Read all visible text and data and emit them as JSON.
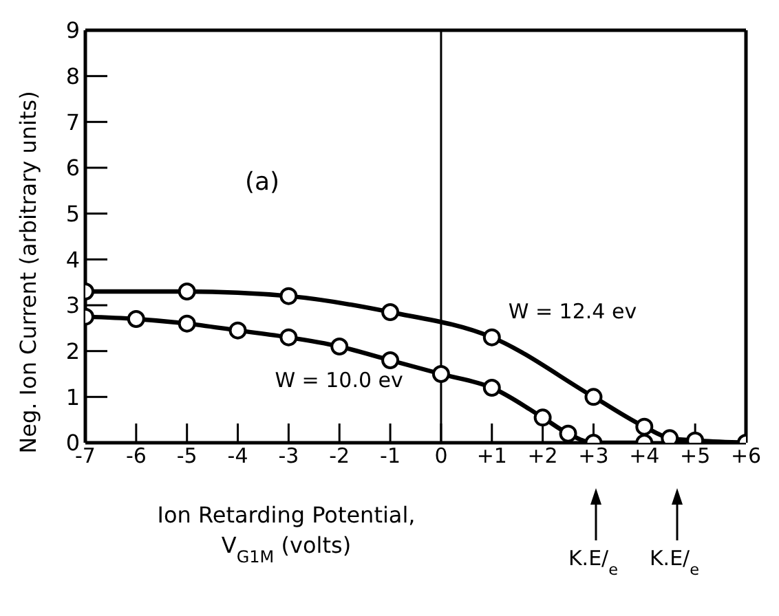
{
  "chart_data": {
    "type": "line",
    "xlabel": "Ion Retarding Potential,\nV$_{G1M}$ (volts)",
    "ylabel": "Neg. Ion Current  (arbitrary units)",
    "series": [
      {
        "name": "W = 12.4 ev",
        "color": "#000000",
        "x": [
          -7,
          -5,
          -3,
          -1,
          1,
          3,
          4,
          4.5,
          5,
          6
        ],
        "values": [
          3.3,
          3.3,
          3.2,
          2.85,
          2.3,
          1.0,
          0.35,
          0.1,
          0.05,
          0
        ]
      },
      {
        "name": "W = 10.0 ev",
        "color": "#000000",
        "x": [
          -7,
          -6,
          -5,
          -4,
          -3,
          -2,
          -1,
          0,
          1,
          2,
          2.5,
          3,
          4
        ],
        "values": [
          2.75,
          2.7,
          2.6,
          2.45,
          2.3,
          2.1,
          1.8,
          1.5,
          1.2,
          0.55,
          0.2,
          0,
          0
        ]
      }
    ],
    "xlim": [
      -7,
      6
    ],
    "xticks": [
      -7,
      -6,
      -5,
      -4,
      -3,
      -2,
      -1,
      0,
      {
        "value": 1,
        "label": "+1"
      },
      {
        "value": 2,
        "label": "+2"
      },
      {
        "value": 3,
        "label": "+3"
      },
      {
        "value": 4,
        "label": "+4"
      },
      {
        "value": 5,
        "label": "+5"
      },
      {
        "value": 6,
        "label": "+6"
      }
    ],
    "ylim": [
      0,
      9
    ],
    "yticks": [
      0,
      1,
      2,
      3,
      4,
      5,
      6,
      7,
      8,
      9
    ],
    "ref_lines": [
      {
        "axis": "x",
        "value": 0,
        "color": "#000000"
      }
    ],
    "annotations": [
      "(a)",
      "K.E/$_{e}$",
      "K.E/$_{e}$"
    ],
    "marker": "circle",
    "line_style": "solid"
  }
}
